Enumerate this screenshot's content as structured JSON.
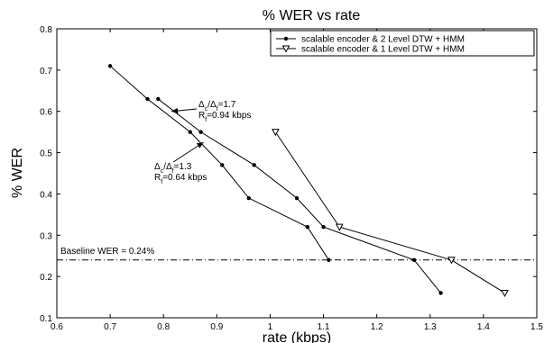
{
  "chart_data": {
    "type": "line",
    "title": "% WER vs rate",
    "xlabel": "rate (kbps)",
    "ylabel": "% WER",
    "xlim": [
      0.6,
      1.5
    ],
    "ylim": [
      0.1,
      0.8
    ],
    "xticks": [
      "0.6",
      "0.7",
      "0.8",
      "0.9",
      "1",
      "1.1",
      "1.2",
      "1.3",
      "1.4",
      "1.5"
    ],
    "yticks": [
      "0.1",
      "0.2",
      "0.3",
      "0.4",
      "0.5",
      "0.6",
      "0.7",
      "0.8"
    ],
    "grid": false,
    "legend_position": "top-right",
    "series": [
      {
        "name": "scalable encoder & 2 Level DTW + HMM",
        "marker": "dot",
        "color": "#000000",
        "lines": [
          {
            "x": [
              0.7,
              0.77,
              0.85,
              0.91,
              0.96,
              1.07,
              1.11
            ],
            "y": [
              0.71,
              0.63,
              0.55,
              0.47,
              0.39,
              0.32,
              0.24
            ]
          },
          {
            "x": [
              0.79,
              0.87,
              0.97,
              1.05,
              1.1,
              1.27,
              1.32
            ],
            "y": [
              0.63,
              0.55,
              0.47,
              0.39,
              0.32,
              0.24,
              0.16
            ]
          }
        ]
      },
      {
        "name": "scalable encoder & 1 Level DTW + HMM",
        "marker": "triangle-down",
        "color": "#000000",
        "lines": [
          {
            "x": [
              1.01,
              1.13,
              1.34,
              1.44
            ],
            "y": [
              0.55,
              0.32,
              0.24,
              0.16
            ]
          }
        ]
      }
    ],
    "baseline": {
      "y": 0.24,
      "label": "Baseline WER = 0.24%"
    },
    "annotations": [
      {
        "ratio_delta_c": "Δ",
        "ratio_sub_c": "c",
        "ratio_delta_f": "Δ",
        "ratio_sub_f": "f",
        "ratio_value": "=1.7",
        "rate_r": "R",
        "rate_sub_f": "f",
        "rate_value": "=0.94 kbps",
        "target_x": 0.815,
        "target_y": 0.6
      },
      {
        "ratio_delta_c": "Δ",
        "ratio_sub_c": "c",
        "ratio_delta_f": "Δ",
        "ratio_sub_f": "f",
        "ratio_value": "=1.3",
        "rate_r": "R",
        "rate_sub_f": "f",
        "rate_value": "=0.64 kbps",
        "target_x": 0.875,
        "target_y": 0.525
      }
    ]
  }
}
